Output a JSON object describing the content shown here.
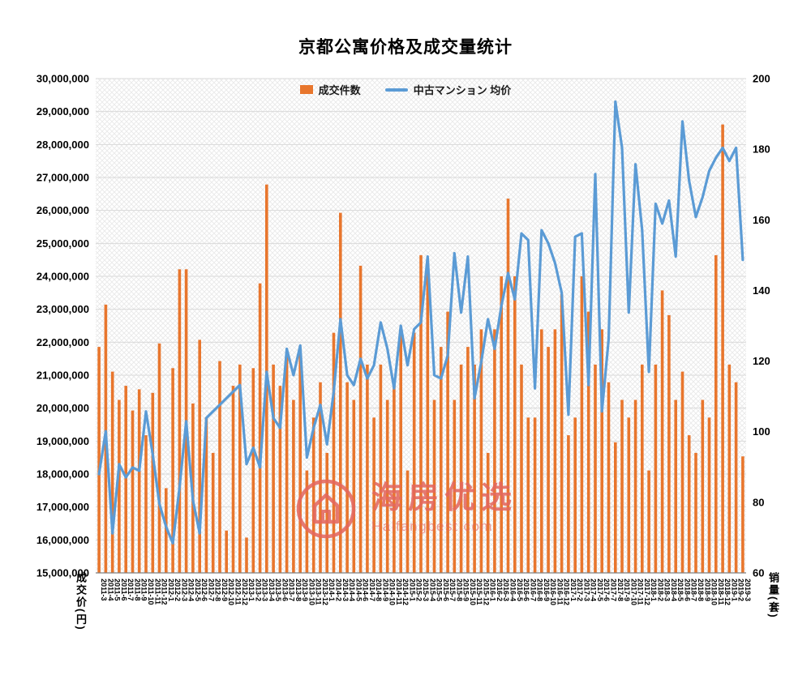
{
  "chart_data": {
    "type": "bar",
    "combo": true,
    "title": "京都公寓价格及成交量统计",
    "xlabel": "",
    "ylabel_left": "成交价(円)",
    "ylabel_right": "销量(套)",
    "ylim_left": [
      15000000,
      30000000
    ],
    "ytick_step_left": 1000000,
    "ylim_right": [
      60,
      200
    ],
    "ytick_step_right": 20,
    "grid": true,
    "legend_position": "top",
    "categories": [
      "2011-3",
      "2011-4",
      "2011-5",
      "2011-6",
      "2011-7",
      "2011-8",
      "2011-9",
      "2011-10",
      "2011-11",
      "2011-12",
      "2012-1",
      "2012-2",
      "2012-3",
      "2012-4",
      "2012-5",
      "2012-6",
      "2012-7",
      "2012-8",
      "2012-9",
      "2012-10",
      "2012-11",
      "2012-12",
      "2013-1",
      "2013-2",
      "2013-3",
      "2013-4",
      "2013-5",
      "2013-6",
      "2013-7",
      "2013-8",
      "2013-9",
      "2013-10",
      "2013-11",
      "2013-12",
      "2014-1",
      "2014-2",
      "2014-3",
      "2014-4",
      "2014-5",
      "2014-6",
      "2014-7",
      "2014-8",
      "2014-9",
      "2014-10",
      "2014-11",
      "2014-12",
      "2015-1",
      "2015-2",
      "2015-3",
      "2015-4",
      "2015-5",
      "2015-6",
      "2015-7",
      "2015-8",
      "2015-9",
      "2015-10",
      "2015-11",
      "2015-12",
      "2016-1",
      "2016-2",
      "2016-3",
      "2016-4",
      "2016-5",
      "2016-6",
      "2016-7",
      "2016-8",
      "2016-9",
      "2016-10",
      "2016-11",
      "2016-12",
      "2017-1",
      "2017-2",
      "2017-3",
      "2017-4",
      "2017-5",
      "2017-6",
      "2017-7",
      "2017-8",
      "2017-9",
      "2017-10",
      "2017-11",
      "2017-12",
      "2018-1",
      "2018-2",
      "2018-3",
      "2018-4",
      "2018-5",
      "2018-6",
      "2018-7",
      "2018-8",
      "2018-9",
      "2018-10",
      "2018-11",
      "2018-12",
      "2019-1",
      "2019-2",
      "2019-3"
    ],
    "series": [
      {
        "name": "成交件数",
        "type": "bar",
        "axis": "right",
        "color": "#E8762D",
        "values": [
          124,
          136,
          117,
          109,
          113,
          106,
          112,
          99,
          111,
          125,
          84,
          118,
          146,
          146,
          108,
          126,
          104,
          94,
          120,
          72,
          113,
          119,
          70,
          118,
          142,
          170,
          119,
          113,
          122,
          109,
          123,
          89,
          104,
          114,
          94,
          128,
          162,
          114,
          109,
          147,
          119,
          104,
          119,
          109,
          114,
          128,
          89,
          128,
          150,
          148,
          109,
          124,
          134,
          109,
          119,
          124,
          119,
          129,
          94,
          129,
          144,
          166,
          144,
          119,
          104,
          104,
          129,
          124,
          129,
          139,
          99,
          104,
          144,
          134,
          119,
          129,
          114,
          97,
          109,
          104,
          109,
          119,
          89,
          119,
          140,
          133,
          109,
          117,
          99,
          94,
          109,
          104,
          150,
          187,
          119,
          114,
          93
        ]
      },
      {
        "name": "中古マンション 均价",
        "type": "line",
        "axis": "left",
        "color": "#5B9BD5",
        "values": [
          18000000,
          19300000,
          16200000,
          18300000,
          17900000,
          18200000,
          18100000,
          19900000,
          18600000,
          17100000,
          16400000,
          15900000,
          17600000,
          19600000,
          17200000,
          16200000,
          19700000,
          19900000,
          20100000,
          20300000,
          20500000,
          20700000,
          18300000,
          18800000,
          18200000,
          21100000,
          19700000,
          19400000,
          21800000,
          21000000,
          21900000,
          18500000,
          19400000,
          20100000,
          18900000,
          20500000,
          22700000,
          21000000,
          20700000,
          21500000,
          20900000,
          21300000,
          22600000,
          21800000,
          20600000,
          22500000,
          21300000,
          22400000,
          22600000,
          24600000,
          21000000,
          20900000,
          21600000,
          24700000,
          22900000,
          24600000,
          20300000,
          21400000,
          22700000,
          21800000,
          23100000,
          24100000,
          23300000,
          25300000,
          25100000,
          20600000,
          25400000,
          25000000,
          24400000,
          23500000,
          19800000,
          25200000,
          25300000,
          20700000,
          27100000,
          19900000,
          22100000,
          29300000,
          27900000,
          22900000,
          27400000,
          25400000,
          21100000,
          26200000,
          25600000,
          26300000,
          24600000,
          28700000,
          26900000,
          25800000,
          26400000,
          27200000,
          27600000,
          27900000,
          27500000,
          27900000,
          24500000
        ]
      }
    ],
    "colors": {
      "grid": "#D9D9D9",
      "axis": "#808080",
      "hatch": "#E8E8E8",
      "tick_text": "#000000"
    }
  },
  "watermark": {
    "name": "海房优选",
    "domain": "Haifangbest.com",
    "color": "#E4685F"
  }
}
